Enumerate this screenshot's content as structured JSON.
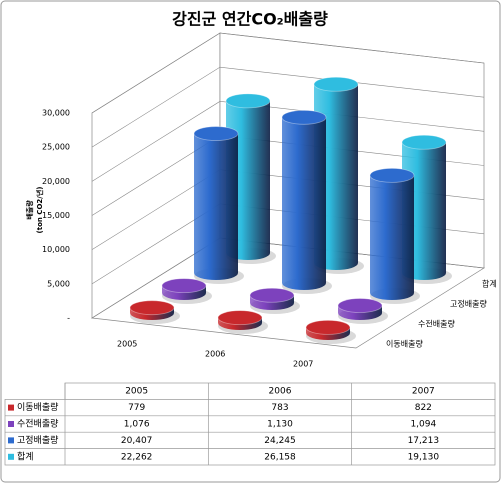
{
  "chart_data": {
    "type": "cylinder3d",
    "title": "강진군 연간CO₂배출량",
    "y_label": "배출량",
    "y_label_unit": "(ton CO2/년)",
    "categories": [
      "2005",
      "2006",
      "2007"
    ],
    "series": [
      {
        "name": "이동배출량",
        "color": "#c8282c",
        "values": [
          779,
          783,
          822
        ]
      },
      {
        "name": "수전배출량",
        "color": "#7d42bd",
        "values": [
          1076,
          1130,
          1094
        ],
        "value_labels": [
          "1,076",
          "1,130",
          "1,094"
        ]
      },
      {
        "name": "고정배출량",
        "color": "#2d6bce",
        "values": [
          20407,
          24245,
          17213
        ],
        "value_labels": [
          "20,407",
          "24,245",
          "17,213"
        ]
      },
      {
        "name": "합계",
        "color": "#2fbde0",
        "values": [
          22262,
          26158,
          19130
        ],
        "value_labels": [
          "22,262",
          "26,158",
          "19,130"
        ]
      }
    ],
    "ylim": [
      0,
      30000
    ],
    "yticks": [
      {
        "value": 0,
        "label": "-"
      },
      {
        "value": 5000,
        "label": "5,000"
      },
      {
        "value": 10000,
        "label": "10,000"
      },
      {
        "value": 15000,
        "label": "15,000"
      },
      {
        "value": 20000,
        "label": "20,000"
      },
      {
        "value": 25000,
        "label": "25,000"
      },
      {
        "value": 30000,
        "label": "30,000"
      }
    ],
    "grid": true
  }
}
